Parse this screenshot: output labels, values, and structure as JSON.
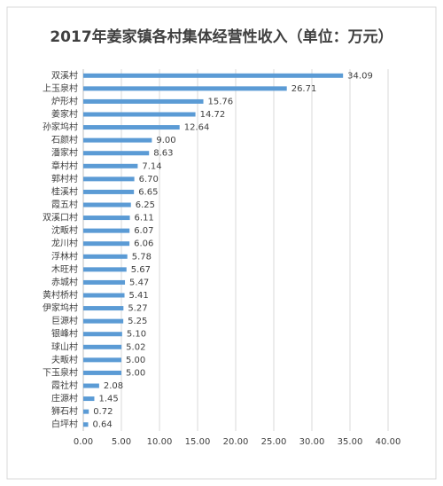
{
  "chart_data": {
    "type": "bar",
    "orientation": "horizontal",
    "title": "2017年姜家镇各村集体经营性收入（单位：万元）",
    "categories": [
      "双溪村",
      "上玉泉村",
      "炉形村",
      "姜家村",
      "孙家坞村",
      "石颜村",
      "潘家村",
      "章村村",
      "郭村村",
      "桂溪村",
      "霞五村",
      "双溪口村",
      "沈畈村",
      "龙川村",
      "浮林村",
      "木旺村",
      "赤城村",
      "黄村桥村",
      "伊家坞村",
      "巨源村",
      "银峰村",
      "球山村",
      "夫畈村",
      "下玉泉村",
      "霞社村",
      "庄源村",
      "狮石村",
      "白坪村"
    ],
    "values": [
      34.09,
      26.71,
      15.76,
      14.72,
      12.64,
      9.0,
      8.63,
      7.14,
      6.7,
      6.65,
      6.25,
      6.11,
      6.07,
      6.06,
      5.78,
      5.67,
      5.47,
      5.41,
      5.27,
      5.25,
      5.1,
      5.02,
      5.0,
      5.0,
      2.08,
      1.45,
      0.72,
      0.64
    ],
    "value_labels": [
      "34.09",
      "26.71",
      "15.76",
      "14.72",
      "12.64",
      "9.00",
      "8.63",
      "7.14",
      "6.70",
      "6.65",
      "6.25",
      "6.11",
      "6.07",
      "6.06",
      "5.78",
      "5.67",
      "5.47",
      "5.41",
      "5.27",
      "5.25",
      "5.10",
      "5.02",
      "5.00",
      "5.00",
      "2.08",
      "1.45",
      "0.72",
      "0.64"
    ],
    "color": "#5b9bd5",
    "xlim": [
      0,
      40
    ],
    "xticks": [
      {
        "value": 0,
        "label": "0.00"
      },
      {
        "value": 5,
        "label": "5.00"
      },
      {
        "value": 10,
        "label": "10.00"
      },
      {
        "value": 15,
        "label": "15.00"
      },
      {
        "value": 20,
        "label": "20.00"
      },
      {
        "value": 25,
        "label": "25.00"
      },
      {
        "value": 30,
        "label": "30.00"
      },
      {
        "value": 35,
        "label": "35.00"
      },
      {
        "value": 40,
        "label": "40.00"
      }
    ],
    "grid": true
  }
}
